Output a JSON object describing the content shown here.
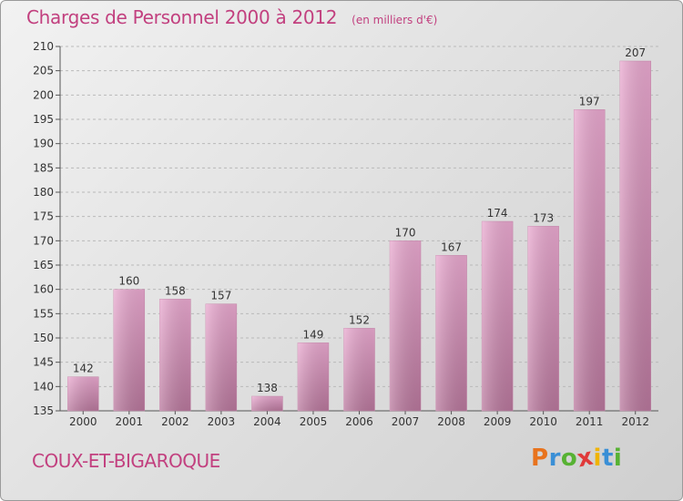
{
  "chart_data": {
    "type": "bar",
    "title": "Charges de Personnel 2000 à 2012",
    "subtitle": "(en milliers d'€)",
    "categories": [
      "2000",
      "2001",
      "2002",
      "2003",
      "2004",
      "2005",
      "2006",
      "2007",
      "2008",
      "2009",
      "2010",
      "2011",
      "2012"
    ],
    "values": [
      142,
      160,
      158,
      157,
      138,
      149,
      152,
      170,
      167,
      174,
      173,
      197,
      207
    ],
    "ylim": [
      135,
      210
    ],
    "yticks": [
      135,
      140,
      145,
      150,
      155,
      160,
      165,
      170,
      175,
      180,
      185,
      190,
      195,
      200,
      205,
      210
    ],
    "grid": true,
    "bar_color": "#d98ab7",
    "title_color": "#c2407f"
  },
  "commune": "COUX-ET-BIGAROQUE",
  "logo": {
    "letters": [
      "P",
      "r",
      "o",
      "x",
      "i",
      "t",
      "i"
    ],
    "colors": [
      "#e8731d",
      "#3a8fd6",
      "#57b233",
      "#e03a3a",
      "#f0b400",
      "#3a8fd6",
      "#57b233"
    ]
  }
}
